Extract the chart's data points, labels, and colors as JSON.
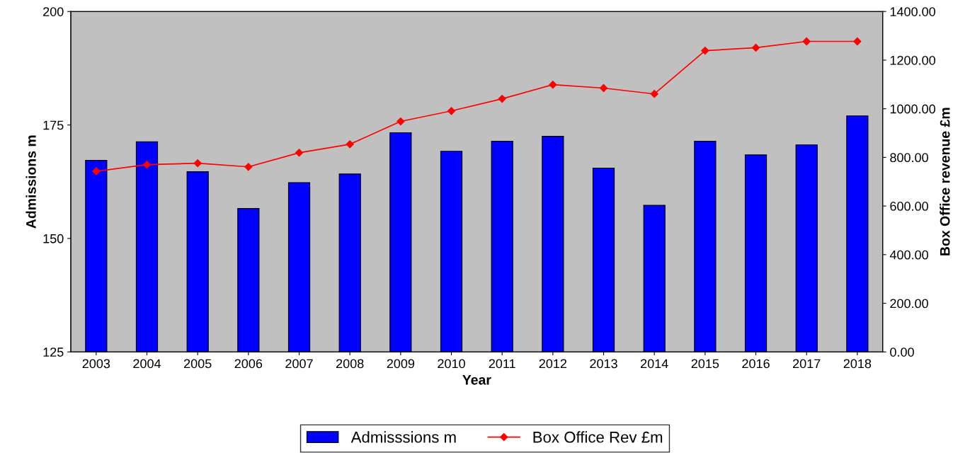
{
  "chart_data": {
    "type": "bar",
    "xlabel": "Year",
    "ylabel": "Admissions m",
    "y2label": "Box Office revenue £m",
    "categories": [
      "2003",
      "2004",
      "2005",
      "2006",
      "2007",
      "2008",
      "2009",
      "2010",
      "2011",
      "2012",
      "2013",
      "2014",
      "2015",
      "2016",
      "2017",
      "2018"
    ],
    "series": [
      {
        "name": "Admisssions m",
        "color": "#0000ff",
        "values": [
          167.2,
          171.3,
          164.7,
          156.6,
          162.3,
          164.2,
          173.3,
          169.2,
          171.4,
          172.5,
          165.5,
          157.3,
          171.4,
          168.4,
          170.6,
          177.0
        ]
      },
      {
        "name": "Box Office Rev £m",
        "type": "line",
        "axis": "y2",
        "color": "#ff0000",
        "marker": "diamond",
        "values": [
          743,
          770,
          776,
          761,
          819,
          854,
          948,
          991,
          1041,
          1099,
          1085,
          1061,
          1239,
          1251,
          1277,
          1277
        ]
      }
    ],
    "ylim": [
      125,
      200
    ],
    "yticks": [
      125,
      150,
      175,
      200
    ],
    "y2lim": [
      0,
      1400
    ],
    "y2ticks": [
      {
        "value": 0,
        "label": "0.00"
      },
      {
        "value": 200,
        "label": "200.00"
      },
      {
        "value": 400,
        "label": "400.00"
      },
      {
        "value": 600,
        "label": "600.00"
      },
      {
        "value": 800,
        "label": "800.00"
      },
      {
        "value": 1000,
        "label": "1000.00"
      },
      {
        "value": 1200,
        "label": "1200.00"
      },
      {
        "value": 1400,
        "label": "1400.00"
      }
    ],
    "legend": "bottom",
    "grid": false
  }
}
